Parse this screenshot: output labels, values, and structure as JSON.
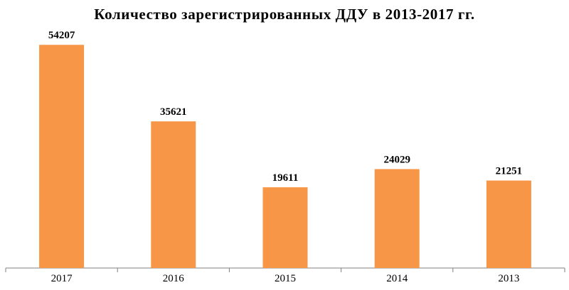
{
  "chart_data": {
    "type": "bar",
    "title": "Количество зарегистрированных ДДУ в 2013-2017 гг.",
    "xlabel": "",
    "ylabel": "",
    "categories": [
      "2017",
      "2016",
      "2015",
      "2014",
      "2013"
    ],
    "values": [
      54207,
      35621,
      19611,
      24029,
      21251
    ],
    "ylim": [
      0,
      62000
    ],
    "grid": false,
    "legend": "none",
    "bar_color": "#F79646",
    "axis_color": "#808080"
  }
}
